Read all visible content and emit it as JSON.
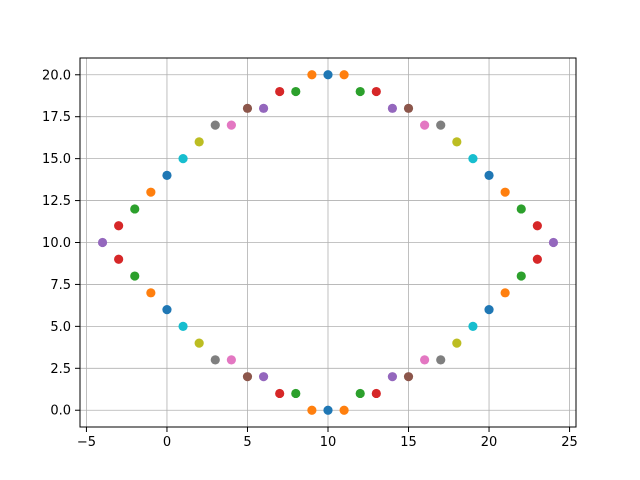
{
  "chart_data": {
    "type": "scatter",
    "title": "",
    "xlabel": "",
    "ylabel": "",
    "xlim": [
      -5.4,
      25.4
    ],
    "ylim": [
      -1.0,
      21.0
    ],
    "grid": true,
    "x_ticks": [
      {
        "value": -5,
        "label": "−5"
      },
      {
        "value": 0,
        "label": "0"
      },
      {
        "value": 5,
        "label": "5"
      },
      {
        "value": 10,
        "label": "10"
      },
      {
        "value": 15,
        "label": "15"
      },
      {
        "value": 20,
        "label": "20"
      },
      {
        "value": 25,
        "label": "25"
      }
    ],
    "y_ticks": [
      {
        "value": 0,
        "label": "0.0"
      },
      {
        "value": 2.5,
        "label": "2.5"
      },
      {
        "value": 5,
        "label": "5.0"
      },
      {
        "value": 7.5,
        "label": "7.5"
      },
      {
        "value": 10,
        "label": "10.0"
      },
      {
        "value": 12.5,
        "label": "12.5"
      },
      {
        "value": 15,
        "label": "15.0"
      },
      {
        "value": 17.5,
        "label": "17.5"
      },
      {
        "value": 20,
        "label": "20.0"
      }
    ],
    "series": [
      {
        "color": "#1f77b4",
        "points": [
          [
            10,
            0
          ],
          [
            10,
            20
          ],
          [
            0,
            6
          ],
          [
            0,
            14
          ],
          [
            20,
            6
          ],
          [
            20,
            14
          ]
        ]
      },
      {
        "color": "#ff7f0e",
        "points": [
          [
            9,
            0
          ],
          [
            11,
            0
          ],
          [
            9,
            20
          ],
          [
            11,
            20
          ],
          [
            -1,
            7
          ],
          [
            -1,
            13
          ],
          [
            21,
            7
          ],
          [
            21,
            13
          ]
        ]
      },
      {
        "color": "#2ca02c",
        "points": [
          [
            8,
            1
          ],
          [
            12,
            1
          ],
          [
            8,
            19
          ],
          [
            12,
            19
          ],
          [
            -2,
            8
          ],
          [
            -2,
            12
          ],
          [
            22,
            8
          ],
          [
            22,
            12
          ]
        ]
      },
      {
        "color": "#d62728",
        "points": [
          [
            7,
            1
          ],
          [
            13,
            1
          ],
          [
            7,
            19
          ],
          [
            13,
            19
          ],
          [
            -3,
            9
          ],
          [
            -3,
            11
          ],
          [
            23,
            9
          ],
          [
            23,
            11
          ]
        ]
      },
      {
        "color": "#9467bd",
        "points": [
          [
            6,
            2
          ],
          [
            14,
            2
          ],
          [
            6,
            18
          ],
          [
            14,
            18
          ],
          [
            -4,
            10
          ],
          [
            24,
            10
          ]
        ]
      },
      {
        "color": "#8c564b",
        "points": [
          [
            5,
            2
          ],
          [
            15,
            2
          ],
          [
            5,
            18
          ],
          [
            15,
            18
          ]
        ]
      },
      {
        "color": "#e377c2",
        "points": [
          [
            4,
            3
          ],
          [
            16,
            3
          ],
          [
            4,
            17
          ],
          [
            16,
            17
          ]
        ]
      },
      {
        "color": "#7f7f7f",
        "points": [
          [
            3,
            3
          ],
          [
            17,
            3
          ],
          [
            3,
            17
          ],
          [
            17,
            17
          ]
        ]
      },
      {
        "color": "#bcbd22",
        "points": [
          [
            2,
            4
          ],
          [
            18,
            4
          ],
          [
            2,
            16
          ],
          [
            18,
            16
          ]
        ]
      },
      {
        "color": "#17becf",
        "points": [
          [
            1,
            5
          ],
          [
            19,
            5
          ],
          [
            1,
            15
          ],
          [
            19,
            15
          ]
        ]
      }
    ]
  }
}
